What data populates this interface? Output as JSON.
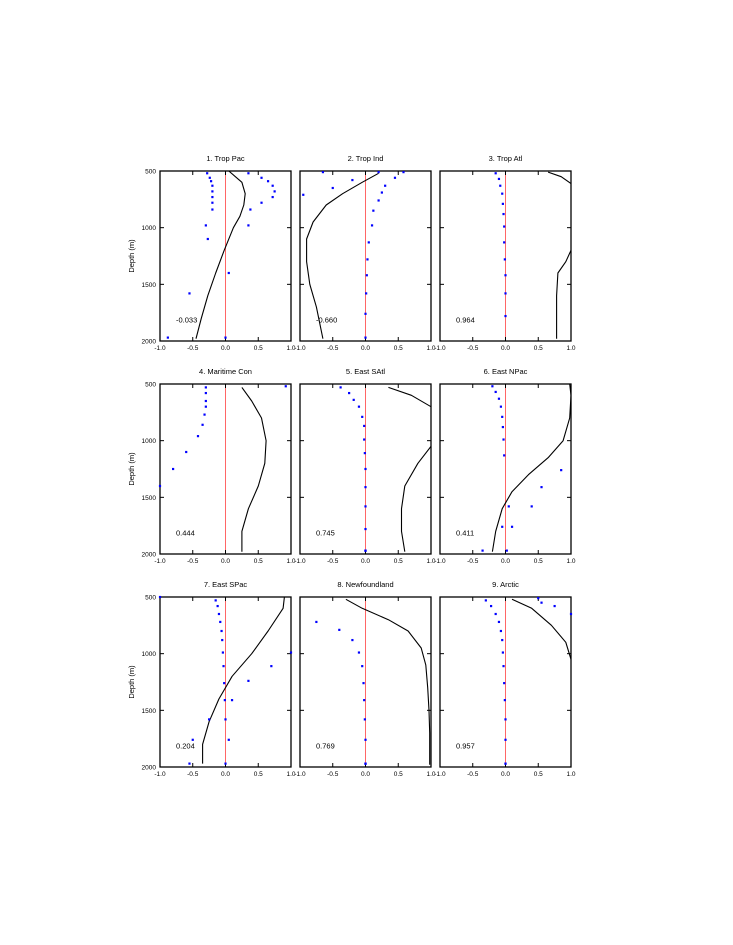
{
  "chart_data": {
    "type": "multi-panel profile",
    "colors": {
      "frame": "#000000",
      "curve": "#000000",
      "zero_line": "#ff6666",
      "dots": "#0000ff"
    },
    "xlim": [
      -1.0,
      1.0
    ],
    "ylim": [
      2000,
      500
    ],
    "y_inverted": true,
    "xticks": [
      "-1.0",
      "-0.5",
      "0.0",
      "0.5",
      "1.0"
    ],
    "yticks": [
      "500",
      "1000",
      "1500",
      "2000"
    ],
    "ylabel": "Depth (m)",
    "panels": [
      {
        "title": "1. Trop Pac",
        "correlation": "-0.033",
        "curve": {
          "x": [
            0.05,
            0.25,
            0.3,
            0.28,
            0.22,
            0.12,
            -0.02,
            -0.15,
            -0.27,
            -0.37,
            -0.45
          ],
          "y": [
            500,
            600,
            700,
            800,
            900,
            1000,
            1200,
            1400,
            1600,
            1800,
            1980
          ]
        },
        "dots": {
          "x": [
            -0.28,
            0.35,
            -0.24,
            0.55,
            -0.22,
            0.65,
            -0.2,
            0.72,
            -0.2,
            0.75,
            -0.2,
            0.72,
            -0.2,
            0.55,
            -0.2,
            0.38,
            -0.3,
            0.35,
            -0.27,
            0.05,
            -0.55,
            -0.88,
            0.0
          ],
          "y": [
            520,
            520,
            560,
            560,
            590,
            590,
            630,
            630,
            680,
            680,
            730,
            730,
            780,
            780,
            840,
            840,
            980,
            980,
            1100,
            1400,
            1580,
            1970,
            1970
          ]
        }
      },
      {
        "title": "2. Trop Ind",
        "correlation": "-0.660",
        "curve": {
          "x": [
            0.2,
            -0.05,
            -0.35,
            -0.6,
            -0.8,
            -0.9,
            -0.9,
            -0.85,
            -0.75,
            -0.65
          ],
          "y": [
            520,
            600,
            700,
            800,
            950,
            1100,
            1300,
            1500,
            1700,
            1980
          ]
        },
        "dots": {
          "x": [
            0.58,
            0.45,
            0.3,
            0.25,
            0.2,
            0.12,
            0.1,
            0.05,
            0.03,
            0.02,
            0.01,
            0.0,
            0.0,
            -0.2,
            -0.5,
            -0.95,
            0.2,
            -0.65
          ],
          "y": [
            510,
            560,
            630,
            690,
            760,
            850,
            980,
            1130,
            1280,
            1420,
            1580,
            1760,
            1970,
            580,
            650,
            710,
            510,
            510
          ]
        }
      },
      {
        "title": "3. Trop Atl",
        "correlation": "0.964",
        "curve": {
          "x": [
            0.65,
            0.85,
            1.0
          ],
          "y": [
            510,
            550,
            610
          ]
        },
        "curve2": {
          "x": [
            1.0,
            0.92,
            0.8,
            0.78,
            0.78
          ],
          "y": [
            1200,
            1300,
            1400,
            1600,
            1980
          ]
        },
        "dots": {
          "x": [
            -0.15,
            -0.1,
            -0.08,
            -0.05,
            -0.04,
            -0.03,
            -0.02,
            -0.02,
            -0.01,
            0.0,
            0.0,
            0.0
          ],
          "y": [
            520,
            570,
            630,
            700,
            790,
            880,
            990,
            1130,
            1280,
            1420,
            1580,
            1780
          ]
        }
      },
      {
        "title": "4. Maritime Con",
        "correlation": "0.444",
        "curve": {
          "x": [
            0.25,
            0.4,
            0.55,
            0.62,
            0.6,
            0.5,
            0.35,
            0.25,
            0.25
          ],
          "y": [
            530,
            650,
            800,
            1000,
            1200,
            1400,
            1600,
            1800,
            1980
          ]
        },
        "dots": {
          "x": [
            -0.3,
            -0.3,
            -0.3,
            -0.3,
            -0.32,
            -0.35,
            -0.42,
            -0.6,
            -0.8,
            -1.0,
            0.92
          ],
          "y": [
            530,
            580,
            650,
            700,
            770,
            860,
            960,
            1100,
            1250,
            1400,
            520
          ]
        }
      },
      {
        "title": "5. East SAtl",
        "correlation": "0.745",
        "curve": {
          "x": [
            0.35,
            0.7,
            1.0
          ],
          "y": [
            530,
            600,
            700
          ]
        },
        "curve2": {
          "x": [
            1.0,
            0.8,
            0.6,
            0.55,
            0.55,
            0.6
          ],
          "y": [
            1050,
            1200,
            1400,
            1600,
            1800,
            1980
          ]
        },
        "dots": {
          "x": [
            -0.38,
            -0.25,
            -0.18,
            -0.1,
            -0.05,
            -0.02,
            -0.02,
            -0.01,
            0.0,
            0.0,
            0.0,
            0.0,
            0.0,
            0.0,
            0.0
          ],
          "y": [
            530,
            580,
            640,
            700,
            790,
            870,
            990,
            1110,
            1250,
            1410,
            1580,
            1780,
            1970,
            1970,
            1970
          ]
        }
      },
      {
        "title": "6. East NPac",
        "correlation": "0.411",
        "curve": {
          "x": [
            0.98,
            1.0,
            0.98,
            0.88,
            0.65,
            0.35,
            0.1,
            -0.05,
            -0.15,
            -0.2
          ],
          "y": [
            500,
            600,
            800,
            1000,
            1150,
            1300,
            1450,
            1600,
            1800,
            1980
          ]
        },
        "dots": {
          "x": [
            -0.2,
            -0.15,
            -0.1,
            -0.07,
            -0.05,
            -0.04,
            -0.03,
            -0.02,
            0.85,
            0.55,
            0.4,
            0.05,
            0.1,
            -0.05,
            0.02,
            -0.35
          ],
          "y": [
            520,
            570,
            630,
            700,
            790,
            880,
            990,
            1130,
            1260,
            1410,
            1580,
            1580,
            1760,
            1760,
            1970,
            1970
          ]
        }
      },
      {
        "title": "7. East SPac",
        "correlation": "0.204",
        "curve": {
          "x": [
            0.9,
            0.88,
            0.65,
            0.4,
            0.1,
            -0.1,
            -0.25,
            -0.35,
            -0.35
          ],
          "y": [
            500,
            600,
            800,
            1000,
            1200,
            1400,
            1600,
            1800,
            1970
          ]
        },
        "dots": {
          "x": [
            -0.15,
            -0.12,
            -0.1,
            -0.08,
            -0.06,
            -0.05,
            -0.04,
            -0.03,
            -0.02,
            -0.01,
            0.0,
            -1.0,
            1.0,
            0.7,
            0.35,
            0.1,
            -0.25,
            0.05,
            -0.5,
            0.0,
            -0.55
          ],
          "y": [
            530,
            580,
            650,
            720,
            800,
            880,
            990,
            1110,
            1260,
            1410,
            1580,
            500,
            990,
            1110,
            1240,
            1410,
            1580,
            1760,
            1760,
            1970,
            1970
          ]
        }
      },
      {
        "title": "8. Newfoundland",
        "correlation": "0.769",
        "curve": {
          "x": [
            -0.3,
            -0.05,
            0.35,
            0.65,
            0.85,
            0.92,
            0.95,
            0.97,
            0.98,
            0.98
          ],
          "y": [
            520,
            600,
            700,
            800,
            950,
            1100,
            1300,
            1500,
            1700,
            1980
          ]
        },
        "dots": {
          "x": [
            -0.75,
            -0.4,
            -0.2,
            -0.1,
            -0.05,
            -0.03,
            -0.02,
            -0.01,
            0.0,
            0.0,
            0.0,
            0.0
          ],
          "y": [
            720,
            790,
            880,
            990,
            1110,
            1260,
            1410,
            1580,
            1760,
            1970,
            1970,
            1970
          ]
        }
      },
      {
        "title": "9. Arctic",
        "correlation": "0.957",
        "curve": {
          "x": [
            0.1,
            0.4,
            0.7,
            0.92,
            1.0
          ],
          "y": [
            520,
            600,
            750,
            900,
            1050
          ]
        },
        "dots": {
          "x": [
            -0.3,
            -0.22,
            -0.15,
            -0.1,
            -0.07,
            -0.05,
            -0.04,
            -0.03,
            -0.02,
            -0.01,
            0.0,
            0.0,
            0.0,
            0.0,
            0.5,
            0.55,
            0.75,
            1.0
          ],
          "y": [
            530,
            580,
            650,
            720,
            800,
            880,
            990,
            1110,
            1260,
            1410,
            1580,
            1760,
            1970,
            1970,
            510,
            550,
            580,
            650
          ]
        }
      }
    ]
  }
}
